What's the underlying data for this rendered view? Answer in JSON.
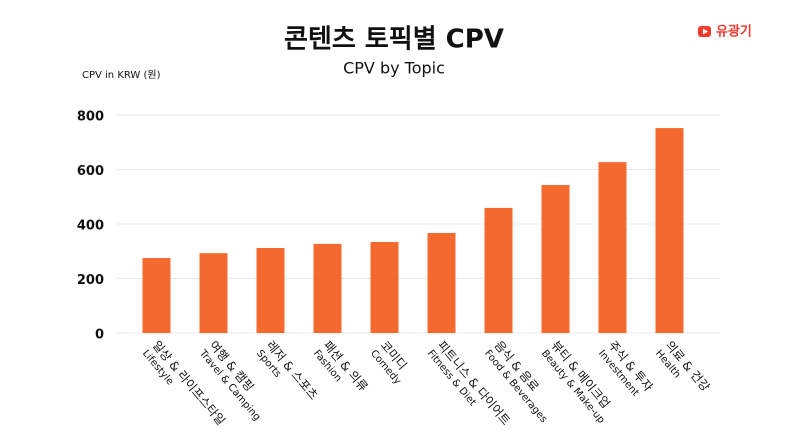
{
  "chart_data": {
    "type": "bar",
    "title": "콘텐츠 토픽별 CPV",
    "subtitle": "CPV by Topic",
    "y_label": "CPV in KRW (원)",
    "brand": "유광기",
    "categories": [
      "일상 & 라이프스타일",
      "여행 & 캠핑",
      "레저 & 스포츠",
      "패션 & 의류",
      "코미디",
      "피트니스 & 다이어트",
      "음식 & 음료",
      "뷰티 & 메이크업",
      "주식 & 투자",
      "의료 & 건강"
    ],
    "category_subtitles": [
      "Lifestyle",
      "Travel & Camping",
      "Sports",
      "Fashion",
      "Comedy",
      "Fitness & Diet",
      "Food & Beverages",
      "Beauty & Make-up",
      "Investment",
      "Health"
    ],
    "values": [
      275,
      293,
      312,
      327,
      334,
      367,
      459,
      543,
      627,
      752
    ],
    "color": "#f4692e",
    "ylim": [
      0,
      800
    ],
    "yticks": [
      0,
      200,
      400,
      600,
      800
    ],
    "grid": true
  }
}
